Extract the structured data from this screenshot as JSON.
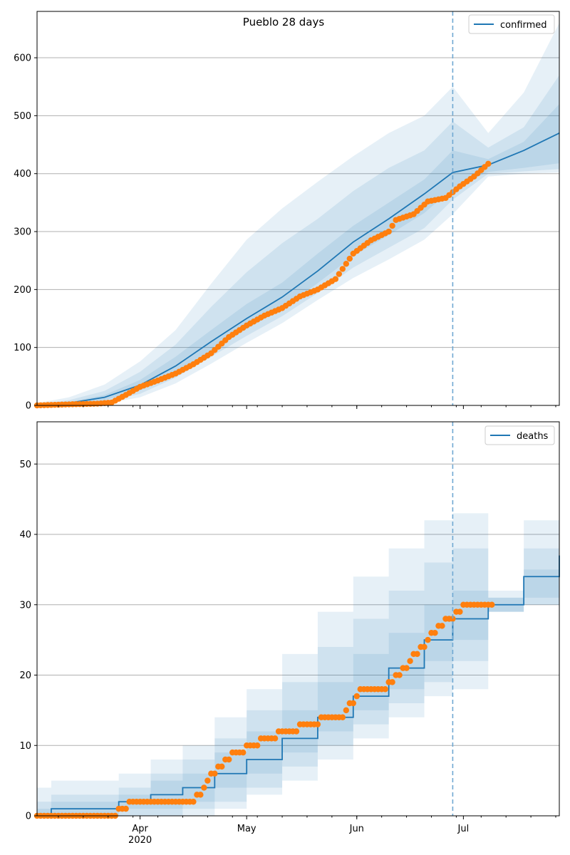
{
  "colors": {
    "model": "#1f77b4",
    "observed": "#ff7f0e",
    "band": "#1f77b4",
    "grid": "#b0b0b0",
    "forecast_line": "#6fa8d2"
  },
  "chart_data": [
    {
      "type": "line",
      "title": "Pueblo 28 days",
      "legend": {
        "entries": [
          "confirmed"
        ],
        "placement": "top-right"
      },
      "x_range": [
        "2020-03-03",
        "2020-07-28"
      ],
      "ylim": [
        0,
        680
      ],
      "y_ticks": [
        0,
        100,
        200,
        300,
        400,
        500,
        600
      ],
      "x_ticks": [
        {
          "date": "2020-04-01",
          "label": "Apr",
          "sublabel": "2020"
        },
        {
          "date": "2020-05-01",
          "label": "May",
          "sublabel": ""
        },
        {
          "date": "2020-06-01",
          "label": "Jun",
          "sublabel": ""
        },
        {
          "date": "2020-07-01",
          "label": "Jul",
          "sublabel": ""
        }
      ],
      "grid": "y",
      "forecast_start": "2020-06-28",
      "model": {
        "name": "confirmed",
        "x": [
          "2020-03-03",
          "2020-03-12",
          "2020-03-22",
          "2020-04-01",
          "2020-04-11",
          "2020-04-21",
          "2020-05-01",
          "2020-05-11",
          "2020-05-21",
          "2020-05-31",
          "2020-06-10",
          "2020-06-20",
          "2020-06-28",
          "2020-07-08",
          "2020-07-18",
          "2020-07-28"
        ],
        "y": [
          0,
          4,
          14,
          35,
          68,
          110,
          150,
          187,
          232,
          282,
          322,
          365,
          402,
          415,
          440,
          470
        ],
        "bands": [
          {
            "lower": [
              0,
              0,
              3,
              14,
              38,
              72,
              108,
              142,
              182,
              220,
              252,
              286,
              330,
              395,
              400,
              402
            ],
            "upper": [
              4,
              14,
              36,
              76,
              130,
              210,
              286,
              340,
              386,
              430,
              470,
              500,
              550,
              470,
              540,
              660
            ]
          },
          {
            "lower": [
              0,
              1,
              6,
              20,
              48,
              84,
              120,
              154,
              194,
              238,
              272,
              306,
              355,
              400,
              404,
              408
            ],
            "upper": [
              2,
              9,
              25,
              58,
              105,
              170,
              230,
              280,
              322,
              370,
              410,
              440,
              490,
              445,
              480,
              570
            ]
          },
          {
            "lower": [
              0,
              2,
              9,
              26,
              56,
              94,
              132,
              167,
              211,
              258,
              294,
              332,
              375,
              403,
              410,
              418
            ],
            "upper": [
              1,
              6,
              18,
              44,
              84,
              130,
              175,
              212,
              262,
              310,
              350,
              390,
              440,
              425,
              455,
              520
            ]
          }
        ]
      },
      "observed": {
        "x": [
          "2020-03-03",
          "2020-03-13",
          "2020-03-20",
          "2020-03-24",
          "2020-03-28",
          "2020-04-01",
          "2020-04-06",
          "2020-04-11",
          "2020-04-16",
          "2020-04-21",
          "2020-04-26",
          "2020-05-01",
          "2020-05-06",
          "2020-05-11",
          "2020-05-16",
          "2020-05-21",
          "2020-05-26",
          "2020-05-31",
          "2020-06-05",
          "2020-06-10",
          "2020-06-12",
          "2020-06-17",
          "2020-06-21",
          "2020-06-26",
          "2020-06-30",
          "2020-07-04",
          "2020-07-08"
        ],
        "y": [
          0,
          2,
          3,
          5,
          18,
          32,
          43,
          55,
          71,
          90,
          118,
          138,
          155,
          168,
          188,
          200,
          218,
          262,
          285,
          300,
          320,
          330,
          352,
          358,
          378,
          395,
          417
        ]
      }
    },
    {
      "type": "line",
      "title": "",
      "legend": {
        "entries": [
          "deaths"
        ],
        "placement": "top-right"
      },
      "x_range": [
        "2020-03-03",
        "2020-07-28"
      ],
      "ylim": [
        0,
        56
      ],
      "y_ticks": [
        0,
        10,
        20,
        30,
        40,
        50
      ],
      "x_ticks": [
        {
          "date": "2020-04-01",
          "label": "Apr",
          "sublabel": "2020"
        },
        {
          "date": "2020-05-01",
          "label": "May",
          "sublabel": ""
        },
        {
          "date": "2020-06-01",
          "label": "Jun",
          "sublabel": ""
        },
        {
          "date": "2020-07-01",
          "label": "Jul",
          "sublabel": ""
        }
      ],
      "grid": "y",
      "forecast_start": "2020-06-28",
      "model": {
        "name": "deaths",
        "step": true,
        "x": [
          "2020-03-03",
          "2020-03-07",
          "2020-03-26",
          "2020-04-04",
          "2020-04-13",
          "2020-04-22",
          "2020-05-01",
          "2020-05-11",
          "2020-05-21",
          "2020-05-31",
          "2020-06-10",
          "2020-06-20",
          "2020-06-28",
          "2020-07-08",
          "2020-07-18",
          "2020-07-28"
        ],
        "y": [
          0,
          1,
          2,
          3,
          4,
          6,
          8,
          11,
          14,
          17,
          21,
          25,
          28,
          30,
          34,
          37
        ],
        "bands": [
          {
            "lower": [
              0,
              0,
              0,
              0,
              0,
              1,
              3,
              5,
              8,
              11,
              14,
              17,
              18,
              29,
              30,
              30
            ],
            "upper": [
              4,
              5,
              6,
              8,
              10,
              14,
              18,
              23,
              29,
              34,
              38,
              42,
              43,
              32,
              42,
              54
            ]
          },
          {
            "lower": [
              0,
              0,
              0,
              0,
              1,
              2,
              4,
              7,
              10,
              13,
              16,
              19,
              22,
              29,
              30,
              32
            ],
            "upper": [
              2,
              3,
              4,
              6,
              8,
              11,
              15,
              19,
              24,
              28,
              32,
              36,
              38,
              31,
              38,
              49
            ]
          },
          {
            "lower": [
              0,
              0,
              1,
              1,
              2,
              4,
              6,
              9,
              12,
              15,
              18,
              22,
              25,
              29,
              31,
              34
            ],
            "upper": [
              1,
              2,
              3,
              5,
              6,
              9,
              12,
              15,
              19,
              23,
              26,
              30,
              32,
              31,
              35,
              43
            ]
          }
        ]
      },
      "observed": {
        "x": [
          "2020-03-03",
          "2020-03-26",
          "2020-03-29",
          "2020-04-17",
          "2020-04-21",
          "2020-04-27",
          "2020-05-01",
          "2020-05-05",
          "2020-05-10",
          "2020-05-16",
          "2020-05-22",
          "2020-05-27",
          "2020-06-02",
          "2020-06-08",
          "2020-06-12",
          "2020-06-17",
          "2020-06-22",
          "2020-06-26",
          "2020-07-01",
          "2020-07-09"
        ],
        "y": [
          0,
          1,
          2,
          3,
          6,
          9,
          10,
          11,
          12,
          13,
          14,
          14,
          18,
          18,
          20,
          23,
          26,
          28,
          30,
          30
        ]
      }
    }
  ]
}
